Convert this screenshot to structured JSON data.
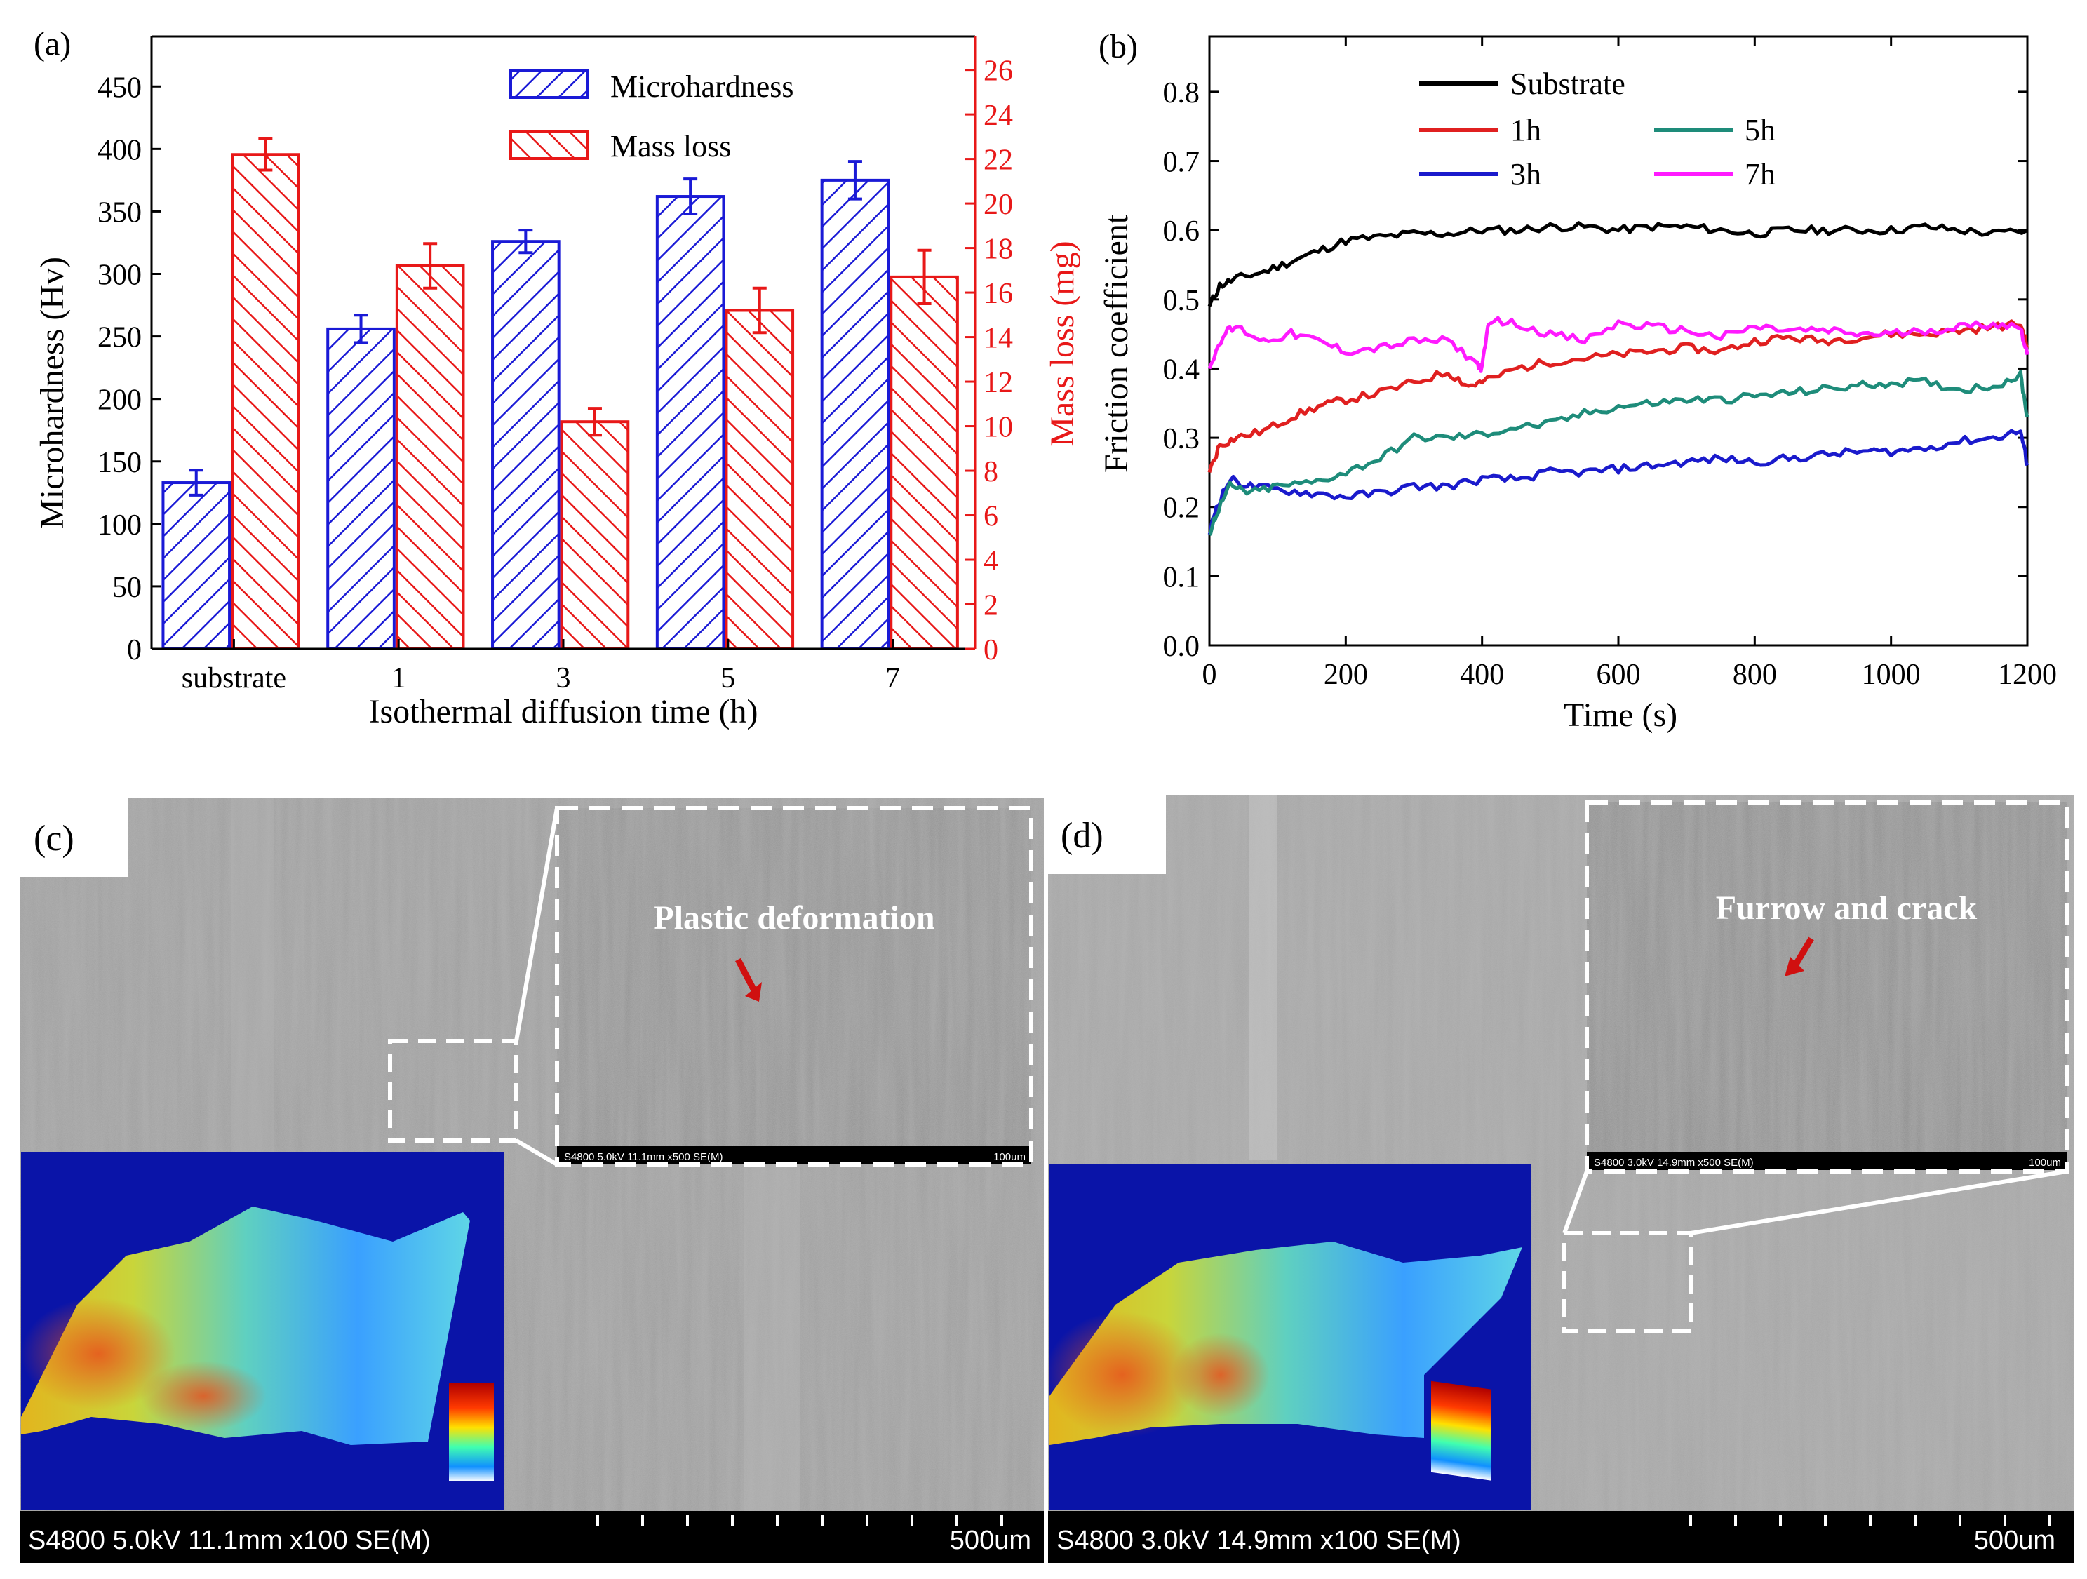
{
  "colors": {
    "micro": "#1a1ad6",
    "mass": "#e81818",
    "axis_right": "#e81818",
    "sub": "#000000",
    "h1": "#e02020",
    "h3": "#1a1acc",
    "h5": "#1e8c7a",
    "h7": "#ff1aff"
  },
  "chart_data": [
    {
      "panel": "(a)",
      "type": "bar",
      "title": "",
      "xlabel": "Isothermal diffusion time (h)",
      "ylabel": "Microhardness (Hv)",
      "ylabel_right": "Mass loss (mg)",
      "categories": [
        "substrate",
        "1",
        "3",
        "5",
        "7"
      ],
      "ylim": [
        0,
        490
      ],
      "ylim_right": [
        0,
        27.5
      ],
      "yticks": [
        "0",
        "50",
        "100",
        "150",
        "200",
        "250",
        "300",
        "350",
        "400",
        "450"
      ],
      "yticks_right": [
        "0",
        "2",
        "4",
        "6",
        "8",
        "10",
        "12",
        "14",
        "16",
        "18",
        "20",
        "22",
        "24",
        "26"
      ],
      "legend_position": "top-center",
      "series": [
        {
          "name": "Microhardness",
          "axis": "left",
          "values": [
            133,
            256,
            326,
            362,
            375
          ],
          "errors": [
            10,
            11,
            9,
            14,
            15
          ]
        },
        {
          "name": "Mass loss",
          "axis": "right",
          "values": [
            22.2,
            17.2,
            10.2,
            15.2,
            16.7
          ],
          "errors": [
            0.7,
            1.0,
            0.6,
            1.0,
            1.2
          ]
        }
      ]
    },
    {
      "panel": "(b)",
      "type": "line",
      "title": "",
      "xlabel": "Time (s)",
      "ylabel": "Friction coefficient",
      "xlim": [
        0,
        1200
      ],
      "ylim": [
        0,
        0.88
      ],
      "xticks": [
        "0",
        "200",
        "400",
        "600",
        "800",
        "1000",
        "1200"
      ],
      "yticks": [
        "0.0",
        "0.1",
        "0.2",
        "0.3",
        "0.4",
        "0.5",
        "0.6",
        "0.7",
        "0.8"
      ],
      "legend_position": "top",
      "series": [
        {
          "name": "Substrate",
          "x": [
            0,
            15,
            40,
            80,
            120,
            160,
            200,
            250,
            300,
            350,
            400,
            450,
            500,
            550,
            600,
            650,
            700,
            750,
            800,
            850,
            900,
            950,
            1000,
            1050,
            1100,
            1150,
            1200
          ],
          "y": [
            0.49,
            0.52,
            0.53,
            0.54,
            0.555,
            0.57,
            0.585,
            0.59,
            0.595,
            0.595,
            0.6,
            0.6,
            0.605,
            0.605,
            0.6,
            0.605,
            0.605,
            0.6,
            0.595,
            0.6,
            0.6,
            0.6,
            0.6,
            0.605,
            0.6,
            0.595,
            0.6
          ]
        },
        {
          "name": "1h",
          "x": [
            0,
            15,
            40,
            80,
            120,
            160,
            200,
            250,
            300,
            350,
            380,
            400,
            450,
            500,
            550,
            600,
            650,
            700,
            750,
            800,
            850,
            900,
            950,
            1000,
            1050,
            1100,
            1150,
            1190,
            1200
          ],
          "y": [
            0.25,
            0.29,
            0.3,
            0.31,
            0.33,
            0.345,
            0.355,
            0.365,
            0.38,
            0.395,
            0.375,
            0.38,
            0.4,
            0.41,
            0.415,
            0.42,
            0.425,
            0.43,
            0.425,
            0.44,
            0.445,
            0.44,
            0.445,
            0.45,
            0.45,
            0.455,
            0.46,
            0.465,
            0.43
          ]
        },
        {
          "name": "3h",
          "x": [
            0,
            10,
            30,
            60,
            100,
            150,
            200,
            250,
            300,
            350,
            400,
            450,
            500,
            550,
            600,
            650,
            700,
            750,
            800,
            850,
            900,
            950,
            1000,
            1050,
            1100,
            1150,
            1190,
            1200
          ],
          "y": [
            0.16,
            0.2,
            0.24,
            0.23,
            0.225,
            0.22,
            0.215,
            0.22,
            0.23,
            0.23,
            0.24,
            0.24,
            0.25,
            0.25,
            0.255,
            0.26,
            0.265,
            0.27,
            0.265,
            0.27,
            0.275,
            0.28,
            0.28,
            0.285,
            0.295,
            0.3,
            0.31,
            0.26
          ]
        },
        {
          "name": "5h",
          "x": [
            0,
            10,
            30,
            60,
            100,
            150,
            200,
            250,
            300,
            350,
            400,
            450,
            500,
            550,
            600,
            650,
            700,
            750,
            800,
            850,
            900,
            950,
            1000,
            1050,
            1100,
            1150,
            1190,
            1200
          ],
          "y": [
            0.16,
            0.19,
            0.23,
            0.22,
            0.23,
            0.235,
            0.25,
            0.27,
            0.3,
            0.3,
            0.305,
            0.315,
            0.32,
            0.335,
            0.345,
            0.35,
            0.355,
            0.355,
            0.36,
            0.365,
            0.37,
            0.375,
            0.38,
            0.38,
            0.37,
            0.375,
            0.39,
            0.33
          ]
        },
        {
          "name": "7h",
          "x": [
            0,
            20,
            40,
            80,
            120,
            160,
            200,
            250,
            300,
            350,
            390,
            400,
            410,
            450,
            500,
            550,
            600,
            650,
            700,
            750,
            800,
            850,
            900,
            950,
            1000,
            1050,
            1100,
            1150,
            1190,
            1200
          ],
          "y": [
            0.4,
            0.45,
            0.46,
            0.44,
            0.45,
            0.44,
            0.425,
            0.43,
            0.44,
            0.44,
            0.41,
            0.4,
            0.47,
            0.465,
            0.45,
            0.44,
            0.465,
            0.46,
            0.455,
            0.445,
            0.46,
            0.455,
            0.455,
            0.45,
            0.45,
            0.455,
            0.46,
            0.465,
            0.46,
            0.42
          ]
        }
      ]
    }
  ],
  "panel_c": {
    "label": "(c)",
    "annotation": "Plastic deformation",
    "inset_bar": "S4800 5.0kV 11.1mm x500 SE(M)",
    "inset_scale": "100um",
    "bar_text": "S4800 5.0kV 11.1mm x100 SE(M)",
    "scale_text": "500um"
  },
  "panel_d": {
    "label": "(d)",
    "annotation": "Furrow and crack",
    "inset_bar": "S4800 3.0kV 14.9mm x500 SE(M)",
    "inset_scale": "100um",
    "bar_text": "S4800 3.0kV 14.9mm x100 SE(M)",
    "scale_text": "500um"
  }
}
